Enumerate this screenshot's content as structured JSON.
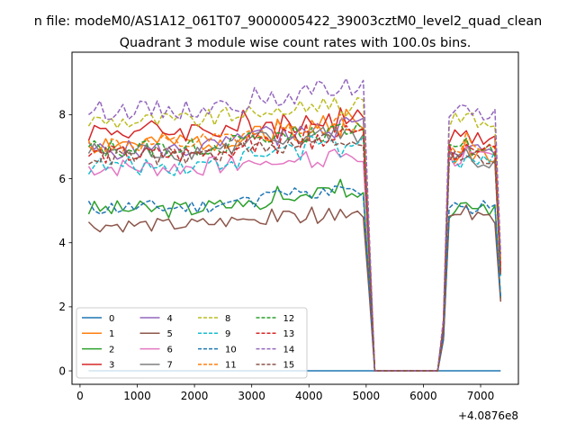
{
  "chart_data": {
    "type": "line",
    "suptitle": "n file: modeM0/AS1A12_061T07_9000005422_39003cztM0_level2_quad_clean",
    "title": "Quadrant 3 module wise count rates with 100.0s bins.",
    "xlabel": "",
    "ylabel": "",
    "x_offset_label": "+4.0876e8",
    "xlim": [
      -140,
      7660
    ],
    "ylim": [
      -0.42,
      9.95
    ],
    "xticks": [
      0,
      1000,
      2000,
      3000,
      4000,
      5000,
      6000,
      7000
    ],
    "yticks": [
      0,
      2,
      4,
      6,
      8
    ],
    "grid": false,
    "legend": {
      "placement": "lower-left",
      "columns": 4
    },
    "x": [
      150,
      250,
      350,
      450,
      550,
      650,
      750,
      850,
      950,
      1050,
      1150,
      1250,
      1350,
      1450,
      1550,
      1650,
      1750,
      1850,
      1950,
      2050,
      2150,
      2250,
      2350,
      2450,
      2550,
      2650,
      2750,
      2850,
      2950,
      3050,
      3150,
      3250,
      3350,
      3450,
      3550,
      3650,
      3750,
      3850,
      3950,
      4050,
      4150,
      4250,
      4350,
      4450,
      4550,
      4650,
      4750,
      4850,
      4950,
      5050,
      5150,
      5250,
      5350,
      5450,
      5550,
      5650,
      5750,
      5850,
      5950,
      6050,
      6150,
      6250,
      6350,
      6450,
      6550,
      6650,
      6750,
      6850,
      6950,
      7050,
      7150,
      7250,
      7350
    ],
    "gap": {
      "drop_index": 49,
      "floor_start": 50,
      "floor_end": 61,
      "rise_index": 62
    },
    "series": [
      {
        "name": "0",
        "color": "#1f77b4",
        "dash": "solid",
        "level": 0.0,
        "noise": 0.0,
        "trend": 0.0,
        "seed": 1,
        "after": 0.0
      },
      {
        "name": "1",
        "color": "#ff7f0e",
        "dash": "solid",
        "level": 7.1,
        "noise": 0.35,
        "trend": 0.6,
        "seed": 2,
        "after": 6.8
      },
      {
        "name": "2",
        "color": "#2ca02c",
        "dash": "solid",
        "level": 5.05,
        "noise": 0.28,
        "trend": 0.5,
        "seed": 3,
        "after": 5.0
      },
      {
        "name": "3",
        "color": "#d62728",
        "dash": "solid",
        "level": 7.5,
        "noise": 0.35,
        "trend": 0.3,
        "seed": 4,
        "after": 7.3
      },
      {
        "name": "4",
        "color": "#9467bd",
        "dash": "solid",
        "level": 6.9,
        "noise": 0.3,
        "trend": 0.7,
        "seed": 5,
        "after": 6.9
      },
      {
        "name": "5",
        "color": "#8c564b",
        "dash": "solid",
        "level": 4.55,
        "noise": 0.22,
        "trend": 0.4,
        "seed": 6,
        "after": 4.8
      },
      {
        "name": "6",
        "color": "#e377c2",
        "dash": "solid",
        "level": 6.35,
        "noise": 0.3,
        "trend": 0.3,
        "seed": 7,
        "after": 6.6
      },
      {
        "name": "7",
        "color": "#7f7f7f",
        "dash": "solid",
        "level": 6.85,
        "noise": 0.3,
        "trend": 0.5,
        "seed": 8,
        "after": 6.6
      },
      {
        "name": "8",
        "color": "#bcbd22",
        "dash": "dashed",
        "level": 7.8,
        "noise": 0.3,
        "trend": 0.5,
        "seed": 9,
        "after": 7.8
      },
      {
        "name": "9",
        "color": "#17becf",
        "dash": "dashed",
        "level": 6.4,
        "noise": 0.3,
        "trend": 0.6,
        "seed": 10,
        "after": 6.6
      },
      {
        "name": "10",
        "color": "#1f77b4",
        "dash": "dashed",
        "level": 5.1,
        "noise": 0.25,
        "trend": 0.5,
        "seed": 11,
        "after": 5.1
      },
      {
        "name": "11",
        "color": "#ff7f0e",
        "dash": "dashed",
        "level": 7.05,
        "noise": 0.3,
        "trend": 0.6,
        "seed": 12,
        "after": 7.0
      },
      {
        "name": "12",
        "color": "#2ca02c",
        "dash": "dashed",
        "level": 6.95,
        "noise": 0.3,
        "trend": 0.5,
        "seed": 13,
        "after": 6.9
      },
      {
        "name": "13",
        "color": "#d62728",
        "dash": "dashed",
        "level": 6.75,
        "noise": 0.3,
        "trend": 0.6,
        "seed": 14,
        "after": 6.8
      },
      {
        "name": "14",
        "color": "#9467bd",
        "dash": "dashed",
        "level": 8.15,
        "noise": 0.3,
        "trend": 0.6,
        "seed": 15,
        "after": 8.1
      },
      {
        "name": "15",
        "color": "#8c564b",
        "dash": "dashed",
        "level": 6.7,
        "noise": 0.3,
        "trend": 0.5,
        "seed": 16,
        "after": 6.6
      }
    ]
  }
}
